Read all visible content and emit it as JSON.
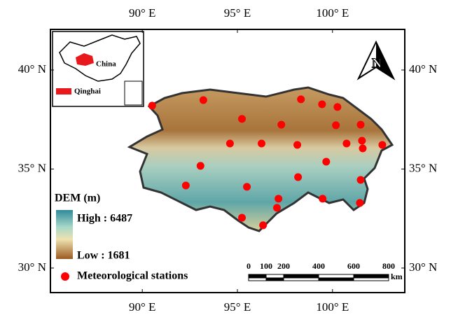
{
  "map": {
    "lonlim": [
      85.17,
      103.8
    ],
    "latlim": [
      28.76,
      42.05
    ],
    "lon_ticks": [
      {
        "value": 90,
        "label": "90° E"
      },
      {
        "value": 95,
        "label": "95° E"
      },
      {
        "value": 100,
        "label": "100° E"
      }
    ],
    "lat_ticks": [
      {
        "value": 40,
        "label": "40° N"
      },
      {
        "value": 35,
        "label": "35° N"
      },
      {
        "value": 30,
        "label": "30° N"
      }
    ],
    "stations": {
      "color": "#ff0000",
      "lon": [
        90.52,
        93.21,
        95.24,
        97.31,
        98.34,
        99.45,
        100.26,
        100.18,
        101.48,
        101.55,
        102.62,
        100.74,
        101.59,
        98.15,
        96.27,
        94.61,
        99.67,
        93.06,
        92.29,
        95.5,
        98.19,
        101.48,
        99.48,
        97.16,
        97.08,
        101.44,
        95.24,
        96.35
      ],
      "lat": [
        38.2,
        38.48,
        37.53,
        37.24,
        38.52,
        38.27,
        38.13,
        37.21,
        37.24,
        36.43,
        36.22,
        36.29,
        36.04,
        36.22,
        36.29,
        36.29,
        35.37,
        35.16,
        34.17,
        34.1,
        34.59,
        34.45,
        33.5,
        33.5,
        33.04,
        33.29,
        32.54,
        32.16
      ]
    },
    "inset": {
      "country": "China",
      "region": "Qinghai"
    },
    "north_arrow": "N",
    "dem_legend": {
      "title": "DEM (m)",
      "high": "High : 6487",
      "low": "Low : 1681"
    },
    "station_legend": "Meteorological stations",
    "scale_bar": {
      "ticks": [
        0,
        100,
        200,
        400,
        600,
        800
      ],
      "unit": "km"
    }
  }
}
